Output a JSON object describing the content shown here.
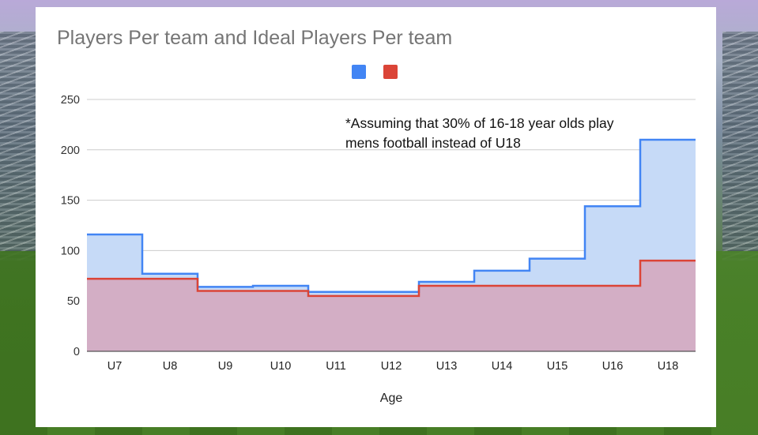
{
  "chart_data": {
    "type": "area",
    "step": true,
    "title": "Players Per team and Ideal Players Per team",
    "xlabel": "Age",
    "ylabel": "",
    "categories": [
      "U7",
      "U8",
      "U9",
      "U10",
      "U11",
      "U12",
      "U13",
      "U14",
      "U15",
      "U16",
      "U18"
    ],
    "ylim": [
      0,
      250
    ],
    "yticks": [
      0,
      50,
      100,
      150,
      200,
      250
    ],
    "grid": true,
    "legend": "top-center",
    "series": [
      {
        "color": "#4285f4",
        "fill": "#c6daf7",
        "values": [
          116,
          77,
          64,
          65,
          59,
          59,
          69,
          80,
          92,
          144,
          210
        ]
      },
      {
        "color": "#db4437",
        "fill": "#d4aac0",
        "values": [
          72,
          72,
          60,
          60,
          55,
          55,
          65,
          65,
          65,
          65,
          90
        ]
      }
    ],
    "annotation": [
      "*Assuming that 30% of 16-18 year olds play",
      "mens football instead of U18"
    ]
  }
}
